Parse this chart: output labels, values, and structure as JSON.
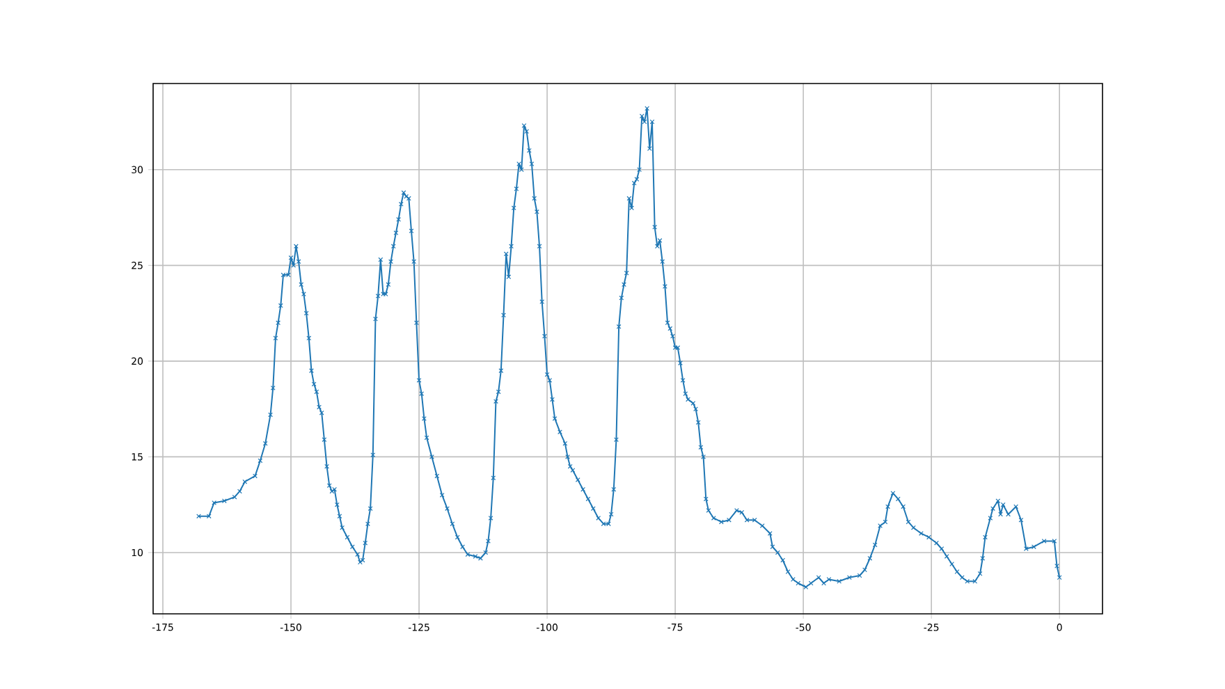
{
  "chart_data": {
    "type": "line",
    "color": "#1f77b4",
    "marker": "cross",
    "line_style": "solid",
    "grid": true,
    "xlim": [
      -176.9,
      8.4
    ],
    "ylim": [
      6.8,
      34.5
    ],
    "xticks": [
      -175,
      -150,
      -125,
      -100,
      -75,
      -50,
      -25,
      0
    ],
    "yticks": [
      10,
      15,
      20,
      25,
      30
    ],
    "x": [
      -168,
      -166,
      -165,
      -163,
      -161,
      -160,
      -159,
      -157,
      -156,
      -155,
      -154,
      -153.5,
      -153,
      -152.5,
      -152,
      -151.5,
      -150.5,
      -150,
      -149.5,
      -149,
      -148.5,
      -148,
      -147.5,
      -147,
      -146.5,
      -146,
      -145.5,
      -145,
      -144.5,
      -144,
      -143.5,
      -143,
      -142.5,
      -142,
      -141.5,
      -141,
      -140.5,
      -140,
      -139,
      -138,
      -137,
      -136.5,
      -136,
      -135.5,
      -135,
      -134.5,
      -134,
      -133.5,
      -133,
      -132.5,
      -132,
      -131.5,
      -131,
      -130.5,
      -130,
      -129.5,
      -129,
      -128.5,
      -128,
      -127.5,
      -127,
      -126.5,
      -126,
      -125.5,
      -125,
      -124.5,
      -124,
      -123.5,
      -122.5,
      -121.5,
      -120.5,
      -119.5,
      -118.5,
      -117.5,
      -116.5,
      -115.5,
      -114,
      -113,
      -112,
      -111.5,
      -111,
      -110.5,
      -110,
      -109.5,
      -109,
      -108.5,
      -108,
      -107.5,
      -107,
      -106.5,
      -106,
      -105.5,
      -105,
      -104.5,
      -104,
      -103.5,
      -103,
      -102.5,
      -102,
      -101.5,
      -101,
      -100.5,
      -100,
      -99.5,
      -99,
      -98.5,
      -97.5,
      -96.5,
      -96,
      -95.5,
      -95,
      -94,
      -93,
      -92,
      -91,
      -90,
      -89,
      -88,
      -87.5,
      -87,
      -86.5,
      -86,
      -85.5,
      -85,
      -84.5,
      -84,
      -83.5,
      -83,
      -82.5,
      -82,
      -81.5,
      -81,
      -80.5,
      -80,
      -79.5,
      -79,
      -78.5,
      -78,
      -77.5,
      -77,
      -76.5,
      -76,
      -75.5,
      -75,
      -74.5,
      -74,
      -73.5,
      -73,
      -72.5,
      -71.5,
      -71,
      -70.5,
      -70,
      -69.5,
      -69,
      -68.5,
      -67.5,
      -66,
      -64.5,
      -63,
      -62,
      -61,
      -59.5,
      -58,
      -56.5,
      -56,
      -55,
      -54,
      -53,
      -52,
      -51,
      -49.5,
      -48.5,
      -47,
      -46,
      -45,
      -43,
      -41,
      -39,
      -38,
      -37,
      -36,
      -35,
      -34,
      -33.5,
      -32.5,
      -31.5,
      -30.5,
      -29.5,
      -28.5,
      -27,
      -25.5,
      -24,
      -23,
      -22,
      -21,
      -20,
      -19,
      -18,
      -16.5,
      -15.5,
      -15,
      -14.5,
      -13.5,
      -13,
      -12,
      -11.5,
      -11,
      -10,
      -8.5,
      -7.5,
      -6.5,
      -5,
      -3,
      -1,
      -0.5,
      0
    ],
    "values": [
      11.9,
      11.9,
      12.6,
      12.7,
      12.9,
      13.2,
      13.7,
      14.0,
      14.8,
      15.7,
      17.2,
      18.6,
      21.2,
      22.0,
      22.9,
      24.5,
      24.5,
      25.4,
      25.0,
      26.0,
      25.2,
      24.0,
      23.5,
      22.5,
      21.2,
      19.5,
      18.8,
      18.4,
      17.6,
      17.3,
      15.9,
      14.5,
      13.5,
      13.2,
      13.3,
      12.5,
      11.9,
      11.3,
      10.8,
      10.3,
      9.9,
      9.5,
      9.6,
      10.5,
      11.5,
      12.3,
      15.1,
      22.2,
      23.4,
      25.3,
      23.5,
      23.5,
      24.0,
      25.2,
      26.0,
      26.7,
      27.4,
      28.2,
      28.8,
      28.6,
      28.5,
      26.8,
      25.2,
      22.0,
      19.0,
      18.3,
      17.0,
      16.0,
      15.0,
      14.0,
      13.0,
      12.3,
      11.5,
      10.8,
      10.3,
      9.9,
      9.8,
      9.7,
      10.0,
      10.6,
      11.8,
      13.9,
      17.9,
      18.4,
      19.5,
      22.4,
      25.6,
      24.4,
      26.0,
      28.0,
      29.0,
      30.3,
      30.0,
      32.3,
      32.0,
      31.0,
      30.3,
      28.5,
      27.8,
      26.0,
      23.1,
      21.3,
      19.3,
      19.0,
      18.0,
      17.0,
      16.3,
      15.7,
      15.0,
      14.5,
      14.3,
      13.8,
      13.3,
      12.8,
      12.3,
      11.8,
      11.5,
      11.5,
      12.0,
      13.3,
      15.9,
      21.8,
      23.3,
      24.0,
      24.6,
      28.5,
      28.0,
      29.3,
      29.5,
      30.0,
      32.8,
      32.5,
      33.2,
      31.1,
      32.5,
      27.0,
      26.0,
      26.3,
      25.2,
      23.9,
      22.0,
      21.7,
      21.3,
      20.7,
      20.7,
      19.9,
      19.0,
      18.3,
      18.0,
      17.8,
      17.5,
      16.8,
      15.5,
      15.0,
      12.8,
      12.2,
      11.8,
      11.6,
      11.7,
      12.2,
      12.1,
      11.7,
      11.7,
      11.4,
      11.0,
      10.3,
      10.0,
      9.6,
      9.0,
      8.6,
      8.4,
      8.2,
      8.4,
      8.7,
      8.4,
      8.6,
      8.5,
      8.7,
      8.8,
      9.1,
      9.7,
      10.4,
      11.4,
      11.6,
      12.4,
      13.1,
      12.8,
      12.4,
      11.6,
      11.3,
      11.0,
      10.8,
      10.5,
      10.2,
      9.8,
      9.4,
      9.0,
      8.7,
      8.5,
      8.5,
      8.9,
      9.7,
      10.8,
      11.8,
      12.3,
      12.7,
      12.0,
      12.5,
      12.0,
      12.4,
      11.7,
      10.2,
      10.3,
      10.6,
      10.6,
      9.3,
      8.7
    ]
  }
}
